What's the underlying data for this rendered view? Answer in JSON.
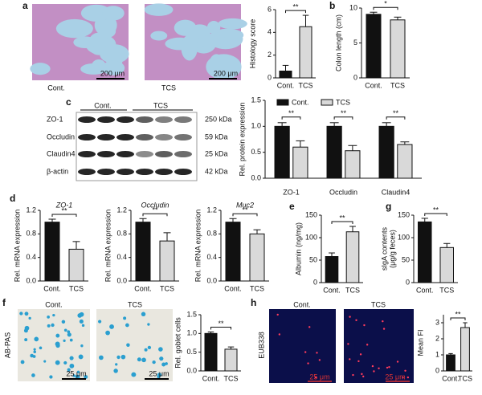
{
  "panel_labels": [
    "a",
    "b",
    "c",
    "d",
    "e",
    "g",
    "f",
    "h"
  ],
  "histology": {
    "labels": [
      "Cont.",
      "TCS"
    ],
    "scale_bars": [
      "200 μm",
      "200 μm"
    ]
  },
  "blot": {
    "groups": [
      "Cont.",
      "TCS"
    ],
    "rows": [
      {
        "protein": "ZO-1",
        "size": "250 kDa"
      },
      {
        "protein": "Occludin",
        "size": "59 kDa"
      },
      {
        "protein": "Claudin4",
        "size": "25 kDa"
      },
      {
        "protein": "β-actin",
        "size": "42 kDa"
      }
    ]
  },
  "goblet": {
    "stain": "AB-PAS",
    "labels": [
      "Cont.",
      "TCS"
    ],
    "scale_bars": [
      "25 μm",
      "25 μm"
    ]
  },
  "fish": {
    "probe": "EUB338",
    "labels": [
      "Cont.",
      "TCS"
    ],
    "scale_bars": [
      "25 μm",
      "25 μm"
    ]
  },
  "chart_data": [
    {
      "type": "bar",
      "ylabel": "Histology score",
      "categories": [
        "Cont.",
        "TCS"
      ],
      "values": [
        0.6,
        4.5
      ],
      "errors": [
        0.5,
        1.0
      ],
      "colors": [
        "#111111",
        "#d9d9d9"
      ],
      "ylim": [
        0,
        6
      ],
      "yticks": [
        0,
        2,
        4,
        6
      ],
      "annotations": [
        "**"
      ]
    },
    {
      "type": "bar",
      "ylabel": "Colon length (cm)",
      "categories": [
        "Cont.",
        "TCS"
      ],
      "values": [
        9.1,
        8.3
      ],
      "errors": [
        0.3,
        0.4
      ],
      "colors": [
        "#111111",
        "#d9d9d9"
      ],
      "ylim": [
        0,
        10
      ],
      "yticks": [
        0,
        5,
        10
      ],
      "annotations": [
        "*"
      ]
    },
    {
      "type": "grouped_bar",
      "ylabel": "Rel. protein expression",
      "categories": [
        "ZO-1",
        "Occludin",
        "Claudin4"
      ],
      "series": [
        {
          "name": "Cont.",
          "color": "#111111",
          "values": [
            1.0,
            1.0,
            1.0
          ],
          "errors": [
            0.07,
            0.07,
            0.07
          ]
        },
        {
          "name": "TCS",
          "color": "#d9d9d9",
          "values": [
            0.6,
            0.53,
            0.65
          ],
          "errors": [
            0.12,
            0.1,
            0.05
          ]
        }
      ],
      "ylim": [
        0,
        1.5
      ],
      "yticks": [
        {
          "value": 0,
          "label": "0.0"
        },
        0.5,
        {
          "value": 1,
          "label": "1.0"
        },
        1.5
      ],
      "annotations": [
        "**",
        "**",
        "**"
      ]
    },
    {
      "type": "bar",
      "title": "ZO-1",
      "ylabel": "Rel. mRNA expression",
      "categories": [
        "Cont.",
        "TCS"
      ],
      "values": [
        1.0,
        0.54
      ],
      "errors": [
        0.05,
        0.13
      ],
      "colors": [
        "#111111",
        "#d9d9d9"
      ],
      "ylim": [
        0,
        1.2
      ],
      "yticks": [
        {
          "value": 0,
          "label": "0.0"
        },
        0.4,
        0.8,
        1.2
      ],
      "annotations": [
        "**"
      ]
    },
    {
      "type": "bar",
      "title": "Occludin",
      "ylabel": "Rel. mRNA expression",
      "categories": [
        "Cont.",
        "TCS"
      ],
      "values": [
        1.0,
        0.68
      ],
      "errors": [
        0.06,
        0.14
      ],
      "colors": [
        "#111111",
        "#d9d9d9"
      ],
      "ylim": [
        0,
        1.2
      ],
      "yticks": [
        {
          "value": 0,
          "label": "0.0"
        },
        0.4,
        0.8,
        1.2
      ],
      "annotations": [
        "**"
      ]
    },
    {
      "type": "bar",
      "title": "Muc2",
      "ylabel": "Rel. mRNA expression",
      "categories": [
        "Cont.",
        "TCS"
      ],
      "values": [
        1.0,
        0.8
      ],
      "errors": [
        0.06,
        0.07
      ],
      "colors": [
        "#111111",
        "#d9d9d9"
      ],
      "ylim": [
        0,
        1.2
      ],
      "yticks": [
        {
          "value": 0,
          "label": "0.0"
        },
        0.4,
        0.8,
        1.2
      ],
      "annotations": [
        "**"
      ]
    },
    {
      "type": "bar",
      "ylabel": "Albumin (ng/mg)",
      "categories": [
        "Cont.",
        "TCS"
      ],
      "values": [
        58,
        113
      ],
      "errors": [
        8,
        12
      ],
      "colors": [
        "#111111",
        "#d9d9d9"
      ],
      "ylim": [
        0,
        150
      ],
      "yticks": [
        0,
        50,
        100,
        150
      ],
      "annotations": [
        "**"
      ]
    },
    {
      "type": "bar",
      "ylabel": [
        "sIgA contents",
        "(μg/g feces)"
      ],
      "categories": [
        "Cont.",
        "TCS"
      ],
      "values": [
        135,
        78
      ],
      "errors": [
        8,
        9
      ],
      "colors": [
        "#111111",
        "#d9d9d9"
      ],
      "ylim": [
        0,
        150
      ],
      "yticks": [
        0,
        50,
        100,
        150
      ],
      "annotations": [
        "**"
      ]
    },
    {
      "type": "bar",
      "ylabel": "Rel. goblet cells",
      "categories": [
        "Cont.",
        "TCS"
      ],
      "values": [
        1.0,
        0.58
      ],
      "errors": [
        0.04,
        0.06
      ],
      "colors": [
        "#111111",
        "#d9d9d9"
      ],
      "ylim": [
        0,
        1.5
      ],
      "yticks": [
        {
          "value": 0,
          "label": "0.0"
        },
        0.5,
        {
          "value": 1,
          "label": "1.0"
        },
        1.5
      ],
      "annotations": [
        "**"
      ]
    },
    {
      "type": "bar",
      "ylabel": "Mean FI",
      "categories": [
        "Cont.",
        "TCS"
      ],
      "values": [
        1.0,
        2.7
      ],
      "errors": [
        0.08,
        0.3
      ],
      "colors": [
        "#111111",
        "#d9d9d9"
      ],
      "ylim": [
        0,
        3.5
      ],
      "yticks": [
        0,
        1,
        2,
        3
      ],
      "annotations": [
        "**"
      ]
    }
  ]
}
